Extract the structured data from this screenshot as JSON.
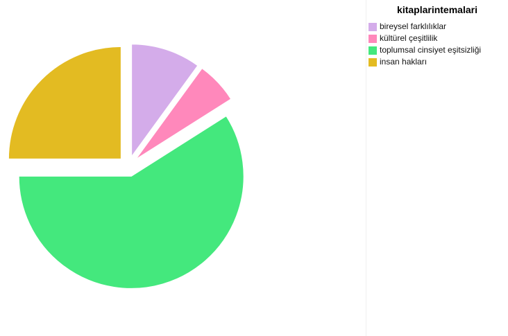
{
  "chart_data": {
    "type": "pie",
    "title": "kitaplarintemalari",
    "legend_position": "top-right",
    "slices": [
      {
        "label": "bireysel farklılıklar",
        "value": 10,
        "color": "#d4acea"
      },
      {
        "label": "kültürel çeşitlilik",
        "value": 6,
        "color": "#ff88bb"
      },
      {
        "label": "toplumsal cinsiyet eşitsizliği",
        "value": 59,
        "color": "#44e87d"
      },
      {
        "label": "insan hakları",
        "value": 25,
        "color": "#e3bb22"
      }
    ]
  }
}
